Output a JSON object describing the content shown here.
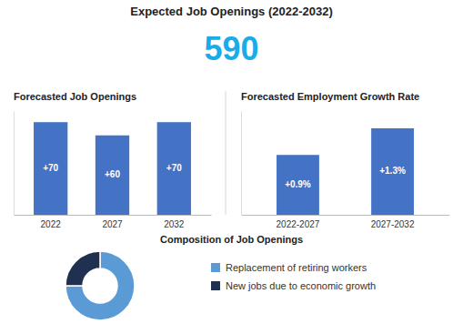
{
  "title": "Expected Job Openings (2022-2032)",
  "annotations": [
    {
      "text": "590",
      "color": "#1AACE8"
    }
  ],
  "chart_data": [
    {
      "type": "bar",
      "title": "Forecasted Job Openings",
      "categories": [
        "2022",
        "2027",
        "2032"
      ],
      "values": [
        70,
        60,
        70
      ],
      "value_labels": [
        "+70",
        "+60",
        "+70"
      ],
      "data_labels": true,
      "color": "#4472C4",
      "ylim": [
        0,
        78.4
      ],
      "tick_labels": "x",
      "grid": false
    },
    {
      "type": "bar",
      "title": "Forecasted Employment Growth Rate",
      "categories": [
        "2022-2027",
        "2027-2032"
      ],
      "values": [
        0.9,
        1.3
      ],
      "value_labels": [
        "+0.9%",
        "+1.3%"
      ],
      "data_labels": true,
      "color": "#4472C4",
      "ylim": [
        0,
        1.56
      ],
      "tick_labels": "x",
      "grid": false
    },
    {
      "type": "donut",
      "title": "Composition of Job Openings",
      "categories": [
        "Replacement of retiring workers",
        "New jobs due to economic growth"
      ],
      "values": [
        75,
        25
      ],
      "colors": [
        "#5B9BD5",
        "#1F3050"
      ],
      "legend": "right"
    }
  ]
}
